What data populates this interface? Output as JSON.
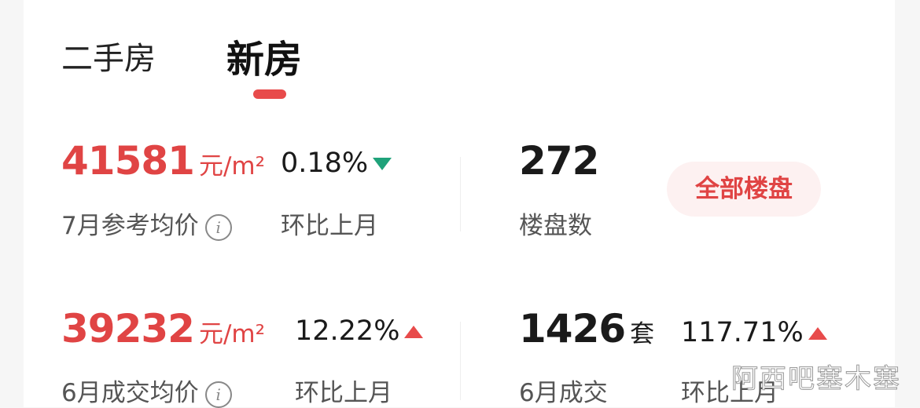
{
  "tabs": [
    {
      "label": "二手房",
      "active": false
    },
    {
      "label": "新房",
      "active": true
    }
  ],
  "accent_color": "#e04444",
  "stats": {
    "ref_price": {
      "value": "41581",
      "unit": "元/m²",
      "label": "7月参考均价",
      "change": "0.18%",
      "direction": "down",
      "change_label": "环比上月",
      "info_icon": "info-icon"
    },
    "project_count": {
      "value": "272",
      "label": "楼盘数",
      "button": "全部楼盘"
    },
    "deal_price": {
      "value": "39232",
      "unit": "元/m²",
      "label": "6月成交均价",
      "change": "12.22%",
      "direction": "up",
      "change_label": "环比上月",
      "info_icon": "info-icon"
    },
    "deal_count": {
      "value": "1426",
      "unit": "套",
      "label": "6月成交",
      "change": "117.71%",
      "direction": "up",
      "change_label": "环比上月"
    }
  },
  "watermark": "阿西吧塞木塞"
}
